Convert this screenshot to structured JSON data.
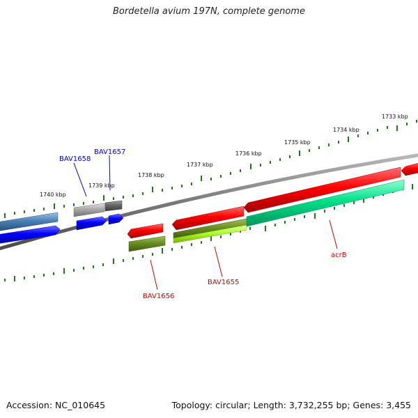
{
  "title": "Bordetella avium 197N, complete genome",
  "footer": {
    "accession": "Accession: NC_010645",
    "summary": "Topology: circular; Length: 3,732,255 bp; Genes: 3,455"
  },
  "scale": {
    "tick_labels": [
      "1740 kbp",
      "1739 kbp",
      "1738 kbp",
      "1737 kbp",
      "1736 kbp",
      "1735 kbp",
      "1734 kbp",
      "1733 kbp"
    ],
    "tick_color": "#1a7a1a"
  },
  "genes": [
    {
      "label": "BAV1658",
      "color": "#0000cc"
    },
    {
      "label": "BAV1657",
      "color": "#0000cc"
    },
    {
      "label": "BAV1656",
      "color": "#cc0000"
    },
    {
      "label": "BAV1655",
      "color": "#cc0000"
    },
    {
      "label": "acrB",
      "color": "#cc0000"
    }
  ],
  "colors": {
    "backbone": "#7a7a7a",
    "forward_gene": "#ff0000",
    "reverse_gene": "#0000ff",
    "steel_gene": "#4a7fb5",
    "olive_gene": "#6b8e23",
    "lime_gene": "#adff2f",
    "teal_gene": "#00e08a",
    "gray_gene": "#a8a8a8",
    "dark_gray_gene": "#666666"
  }
}
